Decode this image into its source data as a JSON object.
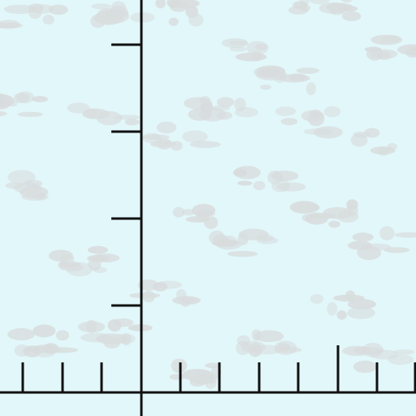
{
  "colors": {
    "background": "#e2f7fa",
    "cloud": "#d8dcdd",
    "axis": "#111111"
  },
  "axes": {
    "vertical_axis_label": "",
    "horizontal_axis_label": ""
  }
}
